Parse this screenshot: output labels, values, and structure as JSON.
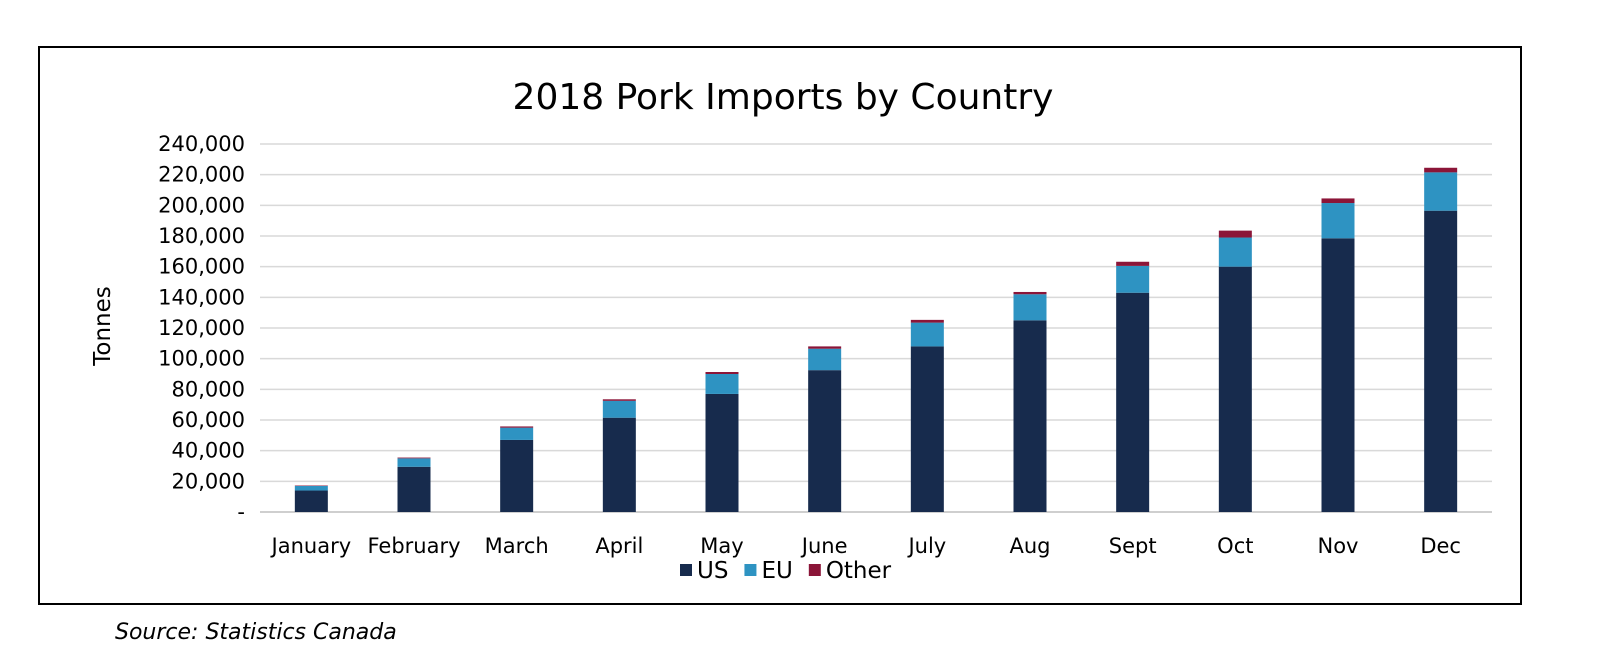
{
  "source": "Source: Statistics Canada",
  "chart_data": {
    "type": "bar",
    "stacked": true,
    "title": "2018 Pork Imports by Country",
    "xlabel": "",
    "ylabel": "Tonnes",
    "ylim": [
      0,
      240000
    ],
    "yticks": [
      0,
      20000,
      40000,
      60000,
      80000,
      100000,
      120000,
      140000,
      160000,
      180000,
      200000,
      220000,
      240000
    ],
    "ytick_labels": [
      "-",
      "20,000",
      "40,000",
      "60,000",
      "80,000",
      "100,000",
      "120,000",
      "140,000",
      "160,000",
      "180,000",
      "200,000",
      "220,000",
      "240,000"
    ],
    "grid": true,
    "legend_position": "bottom",
    "categories": [
      "January",
      "February",
      "March",
      "April",
      "May",
      "June",
      "July",
      "Aug",
      "Sept",
      "Oct",
      "Nov",
      "Dec"
    ],
    "series": [
      {
        "name": "US",
        "color": "#172b4d",
        "values": [
          14000,
          29500,
          47000,
          61500,
          77000,
          92500,
          108000,
          125000,
          143000,
          160000,
          178500,
          196500
        ]
      },
      {
        "name": "EU",
        "color": "#2e93c2",
        "values": [
          3000,
          5500,
          8000,
          11000,
          13000,
          14000,
          15500,
          17000,
          17500,
          19000,
          23000,
          25000
        ]
      },
      {
        "name": "Other",
        "color": "#8b1538",
        "values": [
          300,
          500,
          800,
          1000,
          1300,
          1500,
          1800,
          1500,
          2700,
          4500,
          3000,
          3000
        ]
      }
    ]
  }
}
